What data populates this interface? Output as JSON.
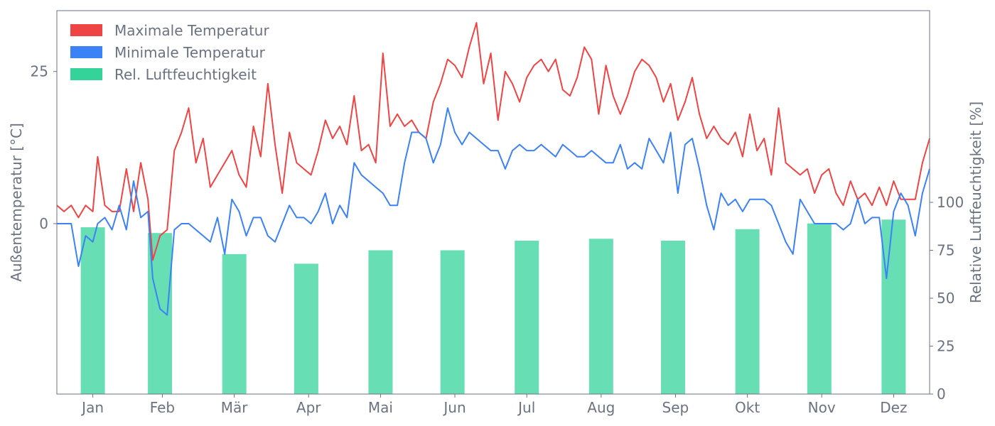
{
  "chart_data": {
    "type": "line",
    "title": "",
    "xlabel": "",
    "ylabel": "Außentemperatur [°C]",
    "y2label": "Relative Luftfeuchtigkeit [%]",
    "ylim": [
      -28,
      35
    ],
    "y2lim": [
      0,
      200
    ],
    "y_ticks": [
      0,
      25
    ],
    "y2_ticks": [
      0,
      25,
      50,
      75,
      100
    ],
    "x_range_days": [
      1,
      365
    ],
    "months": [
      "Jan",
      "Feb",
      "Mär",
      "Apr",
      "Mai",
      "Jun",
      "Jul",
      "Aug",
      "Sep",
      "Okt",
      "Nov",
      "Dez"
    ],
    "month_tick_days": [
      16,
      45,
      75,
      106,
      136,
      167,
      197,
      228,
      259,
      289,
      320,
      350
    ],
    "legend_position": "top-left",
    "grid": false,
    "colors": {
      "max": "#ef4444",
      "min": "#3b82f6",
      "humidity": "#34d399",
      "axis": "#6b7280"
    },
    "series": [
      {
        "name": "Maximale Temperatur",
        "type": "line",
        "axis": "left",
        "x": [
          1,
          4,
          7,
          10,
          13,
          16,
          18,
          21,
          24,
          27,
          30,
          33,
          36,
          39,
          41,
          44,
          47,
          50,
          53,
          56,
          59,
          62,
          65,
          68,
          71,
          74,
          77,
          80,
          83,
          86,
          89,
          92,
          95,
          98,
          101,
          104,
          107,
          110,
          113,
          116,
          119,
          122,
          125,
          128,
          131,
          134,
          137,
          140,
          143,
          146,
          149,
          152,
          155,
          158,
          161,
          164,
          167,
          170,
          173,
          176,
          179,
          182,
          185,
          188,
          191,
          194,
          197,
          200,
          203,
          206,
          209,
          212,
          215,
          218,
          221,
          224,
          227,
          230,
          233,
          236,
          239,
          242,
          245,
          248,
          251,
          254,
          257,
          260,
          263,
          266,
          269,
          272,
          275,
          278,
          281,
          284,
          287,
          290,
          293,
          296,
          299,
          302,
          305,
          308,
          311,
          314,
          317,
          320,
          323,
          326,
          329,
          332,
          335,
          338,
          341,
          344,
          347,
          350,
          353,
          356,
          359,
          362,
          365
        ],
        "values": [
          3,
          2,
          3,
          1,
          3,
          2,
          11,
          3,
          2,
          2,
          9,
          2,
          10,
          4,
          -6,
          -2,
          -1,
          12,
          15,
          19,
          10,
          14,
          6,
          8,
          10,
          12,
          8,
          6,
          16,
          11,
          23,
          13,
          5,
          15,
          10,
          9,
          8,
          12,
          17,
          14,
          16,
          13,
          21,
          12,
          13,
          10,
          28,
          16,
          18,
          16,
          17,
          15,
          14,
          20,
          23,
          27,
          26,
          24,
          29,
          33,
          23,
          28,
          17,
          25,
          23,
          20,
          24,
          26,
          27,
          25,
          27,
          22,
          21,
          24,
          29,
          27,
          18,
          26,
          21,
          18,
          21,
          25,
          27,
          26,
          24,
          20,
          23,
          17,
          20,
          24,
          18,
          14,
          16,
          14,
          13,
          15,
          11,
          18,
          12,
          14,
          8,
          19,
          10,
          9,
          8,
          9,
          5,
          8,
          9,
          5,
          3,
          7,
          4,
          5,
          3,
          6,
          3,
          7,
          4,
          4,
          4,
          10,
          14
        ],
        "color": "#ef4444"
      },
      {
        "name": "Minimale Temperatur",
        "type": "line",
        "axis": "left",
        "x": [
          1,
          4,
          7,
          10,
          13,
          16,
          18,
          21,
          24,
          27,
          30,
          33,
          36,
          39,
          41,
          44,
          47,
          50,
          53,
          56,
          59,
          62,
          65,
          68,
          71,
          74,
          77,
          80,
          83,
          86,
          89,
          92,
          95,
          98,
          101,
          104,
          107,
          110,
          113,
          116,
          119,
          122,
          125,
          128,
          131,
          134,
          137,
          140,
          143,
          146,
          149,
          152,
          155,
          158,
          161,
          164,
          167,
          170,
          173,
          176,
          179,
          182,
          185,
          188,
          191,
          194,
          197,
          200,
          203,
          206,
          209,
          212,
          215,
          218,
          221,
          224,
          227,
          230,
          233,
          236,
          239,
          242,
          245,
          248,
          251,
          254,
          257,
          260,
          263,
          266,
          269,
          272,
          275,
          278,
          281,
          284,
          287,
          290,
          293,
          296,
          299,
          302,
          305,
          308,
          311,
          314,
          317,
          320,
          323,
          326,
          329,
          332,
          335,
          338,
          341,
          344,
          347,
          350,
          353,
          356,
          359,
          362,
          365
        ],
        "values": [
          0,
          0,
          0,
          -7,
          -2,
          -3,
          0,
          1,
          -1,
          3,
          -1,
          7,
          1,
          2,
          -9,
          -14,
          -15,
          -1,
          0,
          0,
          -1,
          -2,
          -3,
          1,
          -5,
          4,
          2,
          -2,
          1,
          1,
          -2,
          -3,
          0,
          3,
          1,
          1,
          0,
          2,
          5,
          0,
          3,
          1,
          10,
          8,
          7,
          6,
          5,
          3,
          3,
          10,
          15,
          15,
          14,
          10,
          13,
          19,
          15,
          13,
          15,
          14,
          13,
          12,
          12,
          9,
          12,
          13,
          12,
          12,
          13,
          12,
          11,
          13,
          12,
          11,
          11,
          12,
          11,
          10,
          10,
          13,
          9,
          10,
          9,
          14,
          12,
          10,
          15,
          5,
          13,
          14,
          9,
          3,
          -1,
          5,
          3,
          4,
          2,
          4,
          4,
          4,
          3,
          0,
          -3,
          -5,
          4,
          2,
          0,
          0,
          0,
          0,
          -1,
          0,
          4,
          0,
          1,
          1,
          -9,
          2,
          5,
          3,
          -2,
          5,
          9
        ],
        "color": "#3b82f6"
      },
      {
        "name": "Rel. Luftfeuchtigkeit",
        "type": "bar",
        "axis": "right",
        "x": [
          16,
          44,
          75,
          105,
          136,
          166,
          197,
          228,
          258,
          289,
          319,
          350
        ],
        "values": [
          87,
          84,
          73,
          68,
          75,
          75,
          80,
          81,
          80,
          86,
          89,
          91
        ],
        "color": "#34d399"
      }
    ]
  }
}
